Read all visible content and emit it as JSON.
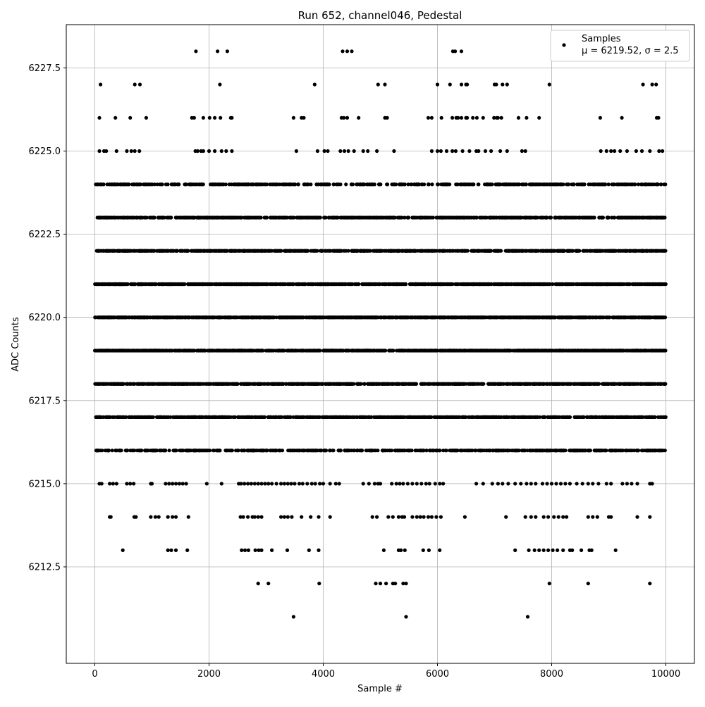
{
  "chart_data": {
    "type": "scatter",
    "title": "Run 652, channel046, Pedestal",
    "xlabel": "Sample #",
    "ylabel": "ADC Counts",
    "xlim": [
      -500,
      10500
    ],
    "ylim": [
      6209.6,
      6228.8
    ],
    "x_ticks": [
      0,
      2000,
      4000,
      6000,
      8000,
      10000
    ],
    "x_tick_labels": [
      "0",
      "2000",
      "4000",
      "6000",
      "8000",
      "10000"
    ],
    "y_ticks": [
      6212.5,
      6215.0,
      6217.5,
      6220.0,
      6222.5,
      6225.0,
      6227.5
    ],
    "y_tick_labels": [
      "6212.5",
      "6215.0",
      "6217.5",
      "6220.0",
      "6222.5",
      "6225.0",
      "6227.5"
    ],
    "grid": true,
    "legend_position": "top-right",
    "legend_entries": [
      "Samples",
      "μ = 6219.52, σ = 2.5"
    ],
    "marker_color": "#000000",
    "series": [
      {
        "name": "Samples",
        "levels": [
          {
            "y": 6228,
            "x": [
              1770,
              2150,
              2320,
              4340,
              4420,
              4500,
              6270,
              6310,
              6420
            ]
          },
          {
            "y": 6227,
            "x": [
              100,
              700,
              790,
              2190,
              3850,
              4960,
              5080,
              6000,
              6220,
              6420,
              6500,
              6520,
              7000,
              7030,
              7140,
              7220,
              7960,
              9600,
              9760,
              9830
            ]
          },
          {
            "y": 6226,
            "x": [
              80,
              360,
              620,
              900,
              1700,
              1740,
              1900,
              2010,
              2100,
              2200,
              2380,
              2400,
              3480,
              3620,
              3660,
              4320,
              4360,
              4420,
              4620,
              5080,
              5120,
              5840,
              5900,
              6070,
              6260,
              6330,
              6360,
              6420,
              6500,
              6520,
              6620,
              6690,
              6800,
              6990,
              7040,
              7060,
              7120,
              7420,
              7560,
              7780,
              8850,
              9230,
              9840,
              9870
            ]
          },
          {
            "y": 6225,
            "x": [
              80,
              160,
              200,
              380,
              560,
              640,
              700,
              780,
              1760,
              1800,
              1860,
              1900,
              2000,
              2100,
              2220,
              2300,
              2400,
              3530,
              3900,
              4020,
              4080,
              4300,
              4370,
              4440,
              4540,
              4700,
              4780,
              4940,
              5240,
              5900,
              6000,
              6060,
              6160,
              6260,
              6320,
              6440,
              6560,
              6680,
              6720,
              6840,
              6940,
              7100,
              7220,
              7480,
              7540,
              8860,
              8960,
              9040,
              9100,
              9200,
              9320,
              9480,
              9580,
              9720,
              9880,
              9940
            ]
          }
        ],
        "dense_levels": [
          {
            "y": 6224,
            "count": 520,
            "seed": 11
          },
          {
            "y": 6223,
            "count": 700,
            "seed": 23
          },
          {
            "y": 6222,
            "count": 900,
            "seed": 37
          },
          {
            "y": 6221,
            "count": 1100,
            "seed": 41
          },
          {
            "y": 6220,
            "count": 1300,
            "seed": 53
          },
          {
            "y": 6219,
            "count": 1250,
            "seed": 67
          },
          {
            "y": 6218,
            "count": 1100,
            "seed": 71
          },
          {
            "y": 6217,
            "count": 820,
            "seed": 83
          },
          {
            "y": 6216,
            "count": 640,
            "seed": 97
          }
        ],
        "sparse_levels": [
          {
            "y": 6215,
            "x": [
              80,
              120,
              260,
              320,
              380,
              560,
              620,
              680,
              980,
              1000,
              1240,
              1300,
              1360,
              1420,
              1480,
              1540,
              1600,
              1960,
              2220,
              2520,
              2560,
              2620,
              2680,
              2740,
              2800,
              2860,
              2920,
              2980,
              3040,
              3100,
              3180,
              3260,
              3320,
              3380,
              3440,
              3500,
              3580,
              3640,
              3720,
              3800,
              3860,
              3940,
              4000,
              4120,
              4220,
              4280,
              4700,
              4800,
              4900,
              4960,
              5000,
              5200,
              5280,
              5340,
              5400,
              5480,
              5560,
              5640,
              5720,
              5800,
              5860,
              5960,
              6040,
              6100,
              6680,
              6800,
              6960,
              7060,
              7140,
              7240,
              7360,
              7460,
              7560,
              7640,
              7720,
              7840,
              7920,
              8000,
              8080,
              8160,
              8240,
              8320,
              8440,
              8540,
              8640,
              8720,
              8820,
              8960,
              9040,
              9240,
              9320,
              9400,
              9500,
              9720,
              9760
            ]
          },
          {
            "y": 6214,
            "x": [
              260,
              280,
              690,
              720,
              980,
              1060,
              1120,
              1280,
              1360,
              1420,
              1640,
              2550,
              2600,
              2680,
              2760,
              2800,
              2860,
              2920,
              3260,
              3320,
              3380,
              3450,
              3620,
              3780,
              3920,
              4120,
              4860,
              4940,
              5140,
              5220,
              5320,
              5380,
              5420,
              5560,
              5640,
              5700,
              5760,
              5840,
              5900,
              5980,
              6060,
              6480,
              7200,
              7540,
              7640,
              7720,
              7860,
              7940,
              8040,
              8120,
              8200,
              8260,
              8640,
              8720,
              8800,
              9000,
              9040,
              9500,
              9720
            ]
          },
          {
            "y": 6213,
            "x": [
              490,
              1280,
              1340,
              1420,
              1620,
              2570,
              2630,
              2690,
              2810,
              2870,
              2920,
              3100,
              3370,
              3750,
              3920,
              5060,
              5320,
              5360,
              5430,
              5750,
              5850,
              6040,
              7360,
              7600,
              7700,
              7780,
              7860,
              7940,
              8020,
              8100,
              8200,
              8320,
              8360,
              8520,
              8660,
              8700,
              9120
            ]
          },
          {
            "y": 6212,
            "x": [
              2860,
              3040,
              3930,
              4920,
              5000,
              5100,
              5220,
              5260,
              5400,
              5450,
              7960,
              8640,
              9720
            ]
          },
          {
            "y": 6211,
            "x": [
              3480,
              5450,
              7580
            ]
          }
        ]
      }
    ]
  }
}
